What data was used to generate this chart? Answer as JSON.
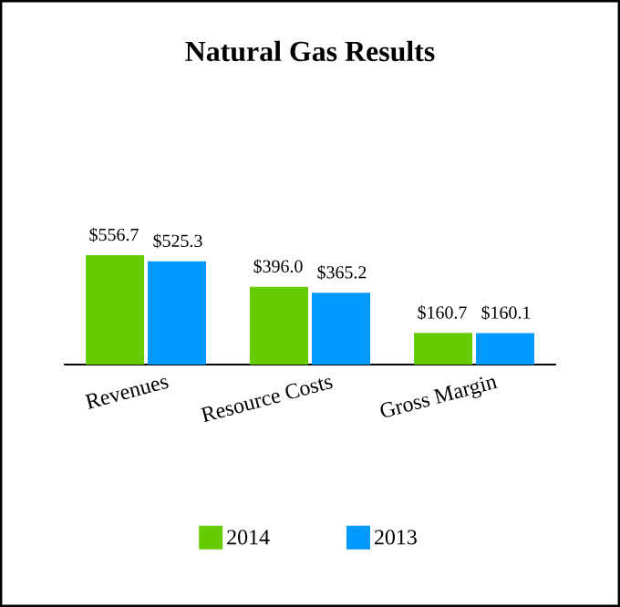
{
  "chart_data": {
    "type": "bar",
    "title": "Natural Gas Results",
    "categories": [
      "Revenues",
      "Resource Costs",
      "Gross Margin"
    ],
    "series": [
      {
        "name": "2014",
        "color": "#66cc00",
        "values": [
          556.7,
          396.0,
          160.7
        ],
        "value_labels": [
          "$556.7",
          "$396.0",
          "$160.7"
        ]
      },
      {
        "name": "2013",
        "color": "#0099ff",
        "values": [
          525.3,
          365.2,
          160.1
        ],
        "value_labels": [
          "$525.3",
          "$365.2",
          "$160.1"
        ]
      }
    ],
    "legend": "bottom"
  }
}
